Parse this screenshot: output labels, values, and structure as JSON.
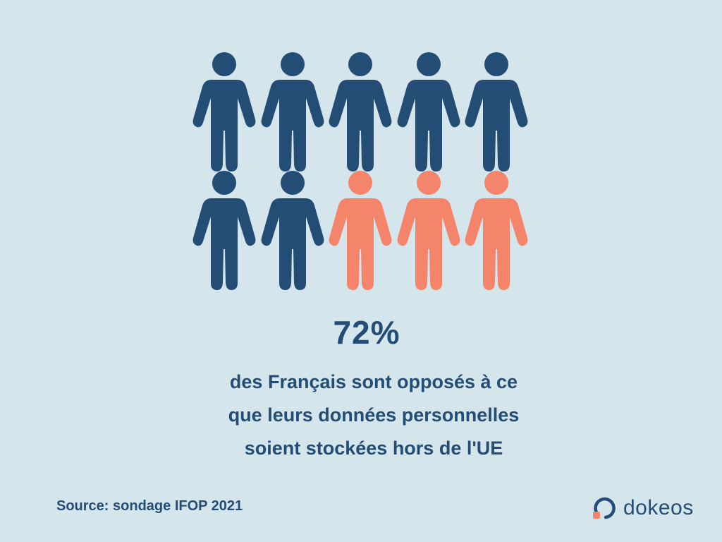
{
  "colors": {
    "background": "#d5e5ec",
    "text": "#234d74",
    "figure_primary": "#234d74",
    "figure_highlight": "#f4856b",
    "logo_accent": "#f4856b"
  },
  "people": {
    "icon": "person-icon",
    "total": 10,
    "primary_count": 7,
    "highlight_count": 3
  },
  "stat": {
    "value": "72%",
    "caption_lines": [
      "des Français sont opposés à ce",
      "que leurs données personnelles",
      "soient stockées hors de l'UE"
    ]
  },
  "source": "Source: sondage IFOP 2021",
  "brand": {
    "name": "dokeos",
    "icon": "dokeos-logo-icon"
  }
}
